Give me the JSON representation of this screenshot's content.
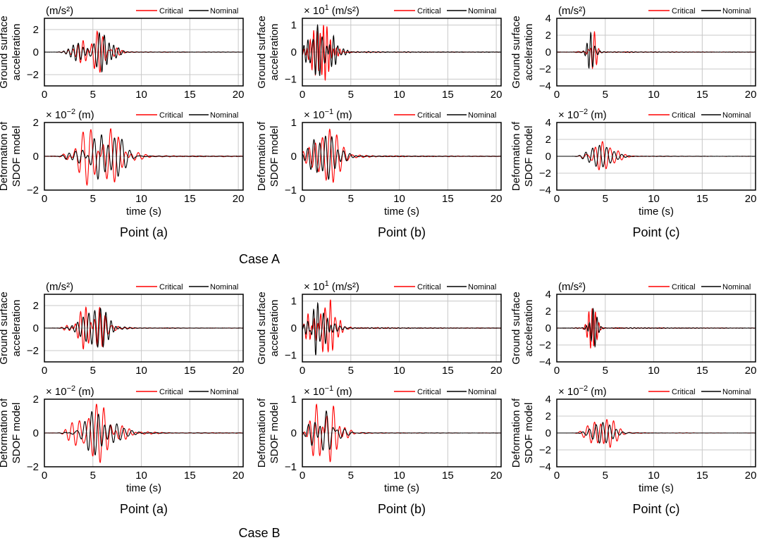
{
  "legend": {
    "critical": "Critical",
    "nominal": "Nominal"
  },
  "colors": {
    "critical": "#ff0000",
    "nominal": "#000000",
    "grid": "#c8c8c8"
  },
  "xlabel": "time (s)",
  "case_titles": [
    "Case A",
    "Case B"
  ],
  "column_titles": [
    "Point (a)",
    "Point (b)",
    "Point (c)"
  ],
  "row_ylabels": {
    "acceleration": [
      "Ground surface",
      "acceleration"
    ],
    "deformation": [
      "Deformation of",
      "SDOF model"
    ]
  },
  "chart_data": [
    {
      "case": "Case A",
      "point": "Point (a)",
      "quantity": "acceleration",
      "type": "line",
      "multiplier": "",
      "unit": "(m/s²)",
      "xlim": [
        0,
        20.5
      ],
      "ylim": [
        -3,
        3
      ],
      "xticks": [
        0,
        5,
        10,
        15,
        20
      ],
      "yticks": [
        -2,
        0,
        2
      ],
      "ytick_labels": [
        "−2",
        "0",
        "2"
      ],
      "series": [
        {
          "name": "Critical",
          "seed": 11,
          "onset": 2.3,
          "center": 5.2,
          "width": 1.8,
          "freq": 1.9,
          "peak": 1.85
        },
        {
          "name": "Nominal",
          "seed": 12,
          "onset": 2.3,
          "center": 5.2,
          "width": 1.8,
          "freq": 1.9,
          "peak": 1.75
        }
      ]
    },
    {
      "case": "Case A",
      "point": "Point (b)",
      "quantity": "acceleration",
      "type": "line",
      "multiplier": "× 10",
      "exponent": "1",
      "unit": "(m/s²)",
      "xlim": [
        0,
        20.5
      ],
      "ylim": [
        -1.25,
        1.25
      ],
      "xticks": [
        0,
        5,
        10,
        15,
        20
      ],
      "yticks": [
        -1,
        0,
        1
      ],
      "ytick_labels": [
        "−1",
        "0",
        "1"
      ],
      "series": [
        {
          "name": "Critical",
          "seed": 21,
          "onset": 0.3,
          "center": 2.0,
          "width": 1.3,
          "freq": 2.4,
          "peak": 1.05
        },
        {
          "name": "Nominal",
          "seed": 22,
          "onset": 0.3,
          "center": 2.0,
          "width": 1.3,
          "freq": 2.4,
          "peak": 1.0
        }
      ]
    },
    {
      "case": "Case A",
      "point": "Point (c)",
      "quantity": "acceleration",
      "type": "line",
      "multiplier": "",
      "unit": "(m/s²)",
      "xlim": [
        0,
        20.5
      ],
      "ylim": [
        -4,
        4
      ],
      "xticks": [
        0,
        5,
        10,
        15,
        20
      ],
      "yticks": [
        -4,
        -2,
        0,
        2,
        4
      ],
      "ytick_labels": [
        "−4",
        "−2",
        "0",
        "2",
        "4"
      ],
      "series": [
        {
          "name": "Critical",
          "seed": 31,
          "onset": 2.5,
          "center": 3.7,
          "width": 0.5,
          "freq": 2.5,
          "peak": 2.4
        },
        {
          "name": "Nominal",
          "seed": 32,
          "onset": 2.5,
          "center": 3.6,
          "width": 0.5,
          "freq": 2.5,
          "peak": 2.3
        }
      ]
    },
    {
      "case": "Case A",
      "point": "Point (a)",
      "quantity": "deformation",
      "type": "line",
      "multiplier": "× 10",
      "exponent": "−2",
      "unit": "(m)",
      "xlim": [
        0,
        20.5
      ],
      "ylim": [
        -2,
        2
      ],
      "xticks": [
        0,
        5,
        10,
        15,
        20
      ],
      "yticks": [
        -2,
        0,
        2
      ],
      "ytick_labels": [
        "−2",
        "0",
        "2"
      ],
      "series": [
        {
          "name": "Critical",
          "seed": 41,
          "onset": 2.5,
          "center": 5.6,
          "width": 2.6,
          "freq": 1.35,
          "peak": 1.7
        },
        {
          "name": "Nominal",
          "seed": 42,
          "onset": 2.5,
          "center": 5.6,
          "width": 2.6,
          "freq": 1.35,
          "peak": 1.35
        }
      ]
    },
    {
      "case": "Case A",
      "point": "Point (b)",
      "quantity": "deformation",
      "type": "line",
      "multiplier": "× 10",
      "exponent": "−1",
      "unit": "(m)",
      "xlim": [
        0,
        20.5
      ],
      "ylim": [
        -1,
        1
      ],
      "xticks": [
        0,
        5,
        10,
        15,
        20
      ],
      "yticks": [
        -1,
        0,
        1
      ],
      "ytick_labels": [
        "−1",
        "0",
        "1"
      ],
      "series": [
        {
          "name": "Critical",
          "seed": 51,
          "onset": 0.3,
          "center": 2.4,
          "width": 1.7,
          "freq": 1.4,
          "peak": 0.8
        },
        {
          "name": "Nominal",
          "seed": 52,
          "onset": 0.3,
          "center": 2.4,
          "width": 1.7,
          "freq": 1.4,
          "peak": 0.68
        }
      ]
    },
    {
      "case": "Case A",
      "point": "Point (c)",
      "quantity": "deformation",
      "type": "line",
      "multiplier": "× 10",
      "exponent": "−2",
      "unit": "(m)",
      "xlim": [
        0,
        20.5
      ],
      "ylim": [
        -4,
        4
      ],
      "xticks": [
        0,
        5,
        10,
        15,
        20
      ],
      "yticks": [
        -4,
        -2,
        0,
        2,
        4
      ],
      "ytick_labels": [
        "−4",
        "−2",
        "0",
        "2",
        "4"
      ],
      "series": [
        {
          "name": "Critical",
          "seed": 61,
          "onset": 2.8,
          "center": 4.7,
          "width": 1.6,
          "freq": 1.4,
          "peak": 1.75
        },
        {
          "name": "Nominal",
          "seed": 62,
          "onset": 2.8,
          "center": 4.7,
          "width": 1.6,
          "freq": 1.4,
          "peak": 1.3
        }
      ]
    },
    {
      "case": "Case B",
      "point": "Point (a)",
      "quantity": "acceleration",
      "type": "line",
      "multiplier": "",
      "unit": "(m/s²)",
      "xlim": [
        0,
        20.5
      ],
      "ylim": [
        -3,
        3
      ],
      "xticks": [
        0,
        5,
        10,
        15,
        20
      ],
      "yticks": [
        -2,
        0,
        2
      ],
      "ytick_labels": [
        "−2",
        "0",
        "2"
      ],
      "series": [
        {
          "name": "Critical",
          "seed": 71,
          "onset": 2.3,
          "center": 5.2,
          "width": 1.8,
          "freq": 1.9,
          "peak": 1.85
        },
        {
          "name": "Nominal",
          "seed": 72,
          "onset": 2.3,
          "center": 5.2,
          "width": 1.8,
          "freq": 1.9,
          "peak": 1.75
        }
      ]
    },
    {
      "case": "Case B",
      "point": "Point (b)",
      "quantity": "acceleration",
      "type": "line",
      "multiplier": "× 10",
      "exponent": "1",
      "unit": "(m/s²)",
      "xlim": [
        0,
        20.5
      ],
      "ylim": [
        -1.25,
        1.25
      ],
      "xticks": [
        0,
        5,
        10,
        15,
        20
      ],
      "yticks": [
        -1,
        0,
        1
      ],
      "ytick_labels": [
        "−1",
        "0",
        "1"
      ],
      "series": [
        {
          "name": "Critical",
          "seed": 81,
          "onset": 0.3,
          "center": 2.0,
          "width": 1.3,
          "freq": 2.4,
          "peak": 1.05
        },
        {
          "name": "Nominal",
          "seed": 82,
          "onset": 0.3,
          "center": 2.0,
          "width": 1.3,
          "freq": 2.4,
          "peak": 1.0
        }
      ]
    },
    {
      "case": "Case B",
      "point": "Point (c)",
      "quantity": "acceleration",
      "type": "line",
      "multiplier": "",
      "unit": "(m/s²)",
      "xlim": [
        0,
        20.5
      ],
      "ylim": [
        -4,
        4
      ],
      "xticks": [
        0,
        5,
        10,
        15,
        20
      ],
      "yticks": [
        -4,
        -2,
        0,
        2,
        4
      ],
      "ytick_labels": [
        "−4",
        "−2",
        "0",
        "2",
        "4"
      ],
      "series": [
        {
          "name": "Critical",
          "seed": 91,
          "onset": 2.5,
          "center": 3.7,
          "width": 0.5,
          "freq": 2.5,
          "peak": 2.4
        },
        {
          "name": "Nominal",
          "seed": 92,
          "onset": 2.5,
          "center": 3.6,
          "width": 0.5,
          "freq": 2.5,
          "peak": 2.3
        }
      ]
    },
    {
      "case": "Case B",
      "point": "Point (a)",
      "quantity": "deformation",
      "type": "line",
      "multiplier": "× 10",
      "exponent": "−2",
      "unit": "(m)",
      "xlim": [
        0,
        20.5
      ],
      "ylim": [
        -2,
        2
      ],
      "xticks": [
        0,
        5,
        10,
        15,
        20
      ],
      "yticks": [
        -2,
        0,
        2
      ],
      "ytick_labels": [
        "−2",
        "0",
        "2"
      ],
      "series": [
        {
          "name": "Critical",
          "seed": 101,
          "onset": 2.5,
          "center": 5.5,
          "width": 2.6,
          "freq": 1.35,
          "peak": 1.75
        },
        {
          "name": "Nominal",
          "seed": 102,
          "onset": 2.5,
          "center": 5.5,
          "width": 2.6,
          "freq": 1.35,
          "peak": 1.3
        }
      ]
    },
    {
      "case": "Case B",
      "point": "Point (b)",
      "quantity": "deformation",
      "type": "line",
      "multiplier": "× 10",
      "exponent": "−1",
      "unit": "(m)",
      "xlim": [
        0,
        20.5
      ],
      "ylim": [
        -1,
        1
      ],
      "xticks": [
        0,
        5,
        10,
        15,
        20
      ],
      "yticks": [
        -1,
        0,
        1
      ],
      "ytick_labels": [
        "−1",
        "0",
        "1"
      ],
      "series": [
        {
          "name": "Critical",
          "seed": 111,
          "onset": 0.3,
          "center": 2.4,
          "width": 1.7,
          "freq": 1.4,
          "peak": 0.85
        },
        {
          "name": "Nominal",
          "seed": 112,
          "onset": 0.3,
          "center": 2.4,
          "width": 1.7,
          "freq": 1.4,
          "peak": 0.65
        }
      ]
    },
    {
      "case": "Case B",
      "point": "Point (c)",
      "quantity": "deformation",
      "type": "line",
      "multiplier": "× 10",
      "exponent": "−2",
      "unit": "(m)",
      "xlim": [
        0,
        20.5
      ],
      "ylim": [
        -4,
        4
      ],
      "xticks": [
        0,
        5,
        10,
        15,
        20
      ],
      "yticks": [
        -4,
        -2,
        0,
        2,
        4
      ],
      "ytick_labels": [
        "−4",
        "−2",
        "0",
        "2",
        "4"
      ],
      "series": [
        {
          "name": "Critical",
          "seed": 121,
          "onset": 2.8,
          "center": 4.7,
          "width": 1.6,
          "freq": 1.4,
          "peak": 1.7
        },
        {
          "name": "Nominal",
          "seed": 122,
          "onset": 2.8,
          "center": 4.7,
          "width": 1.6,
          "freq": 1.4,
          "peak": 1.25
        }
      ]
    }
  ]
}
